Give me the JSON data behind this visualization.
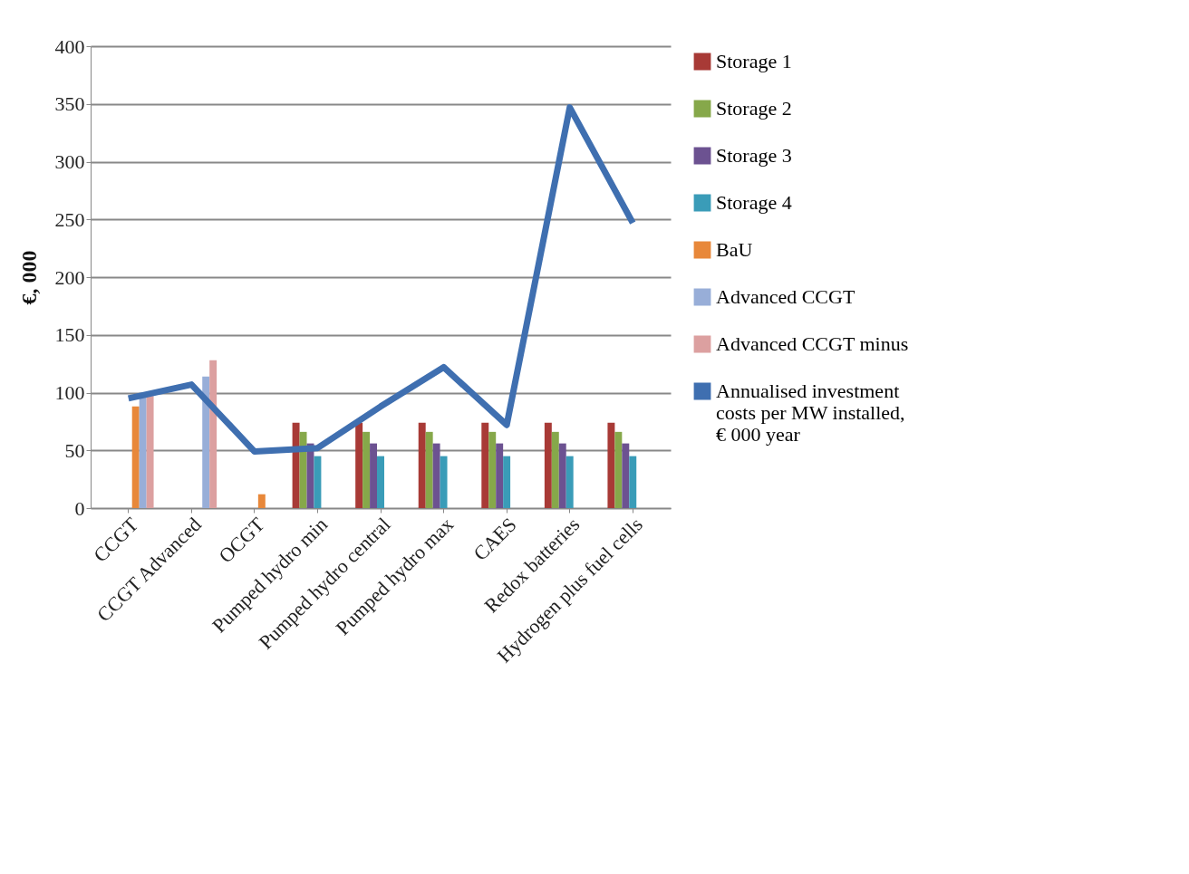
{
  "chart_data": {
    "type": "bar",
    "ylabel": "€, 000",
    "categories": [
      "CCGT",
      "CCGT Advanced",
      "OCGT",
      "Pumped hydro min",
      "Pumped hydro central",
      "Pumped hydro max",
      "CAES",
      "Redox batteries",
      "Hydrogen plus fuel cells"
    ],
    "series": [
      {
        "name": "Storage 1",
        "color": "#a83a36",
        "values": [
          null,
          null,
          null,
          74,
          74,
          74,
          74,
          74,
          74
        ]
      },
      {
        "name": "Storage 2",
        "color": "#86a84a",
        "values": [
          null,
          null,
          null,
          66,
          66,
          66,
          66,
          66,
          66
        ]
      },
      {
        "name": "Storage 3",
        "color": "#6c5291",
        "values": [
          null,
          null,
          null,
          56,
          56,
          56,
          56,
          56,
          56
        ]
      },
      {
        "name": "Storage 4",
        "color": "#3a9cb8",
        "values": [
          null,
          null,
          null,
          45,
          45,
          45,
          45,
          45,
          45
        ]
      },
      {
        "name": "BaU",
        "color": "#e8883a",
        "values": [
          88,
          null,
          12,
          null,
          null,
          null,
          null,
          null,
          null
        ]
      },
      {
        "name": "Advanced CCGT",
        "color": "#98aed8",
        "values": [
          96,
          114,
          null,
          null,
          null,
          null,
          null,
          null,
          null
        ]
      },
      {
        "name": "Advanced CCGT minus",
        "color": "#dca0a0",
        "values": [
          97,
          128,
          null,
          null,
          null,
          null,
          null,
          null,
          null
        ]
      },
      {
        "name": "Annualised investment costs per MW installed, € 000 year",
        "type": "line",
        "color": "#3f6fb0",
        "values": [
          95,
          107,
          49,
          52,
          88,
          122,
          72,
          347,
          247
        ]
      }
    ],
    "ylim": [
      0,
      400
    ],
    "yticks": [
      0,
      50,
      100,
      150,
      200,
      250,
      300,
      350,
      400
    ],
    "grid": "y",
    "legend": "right"
  }
}
